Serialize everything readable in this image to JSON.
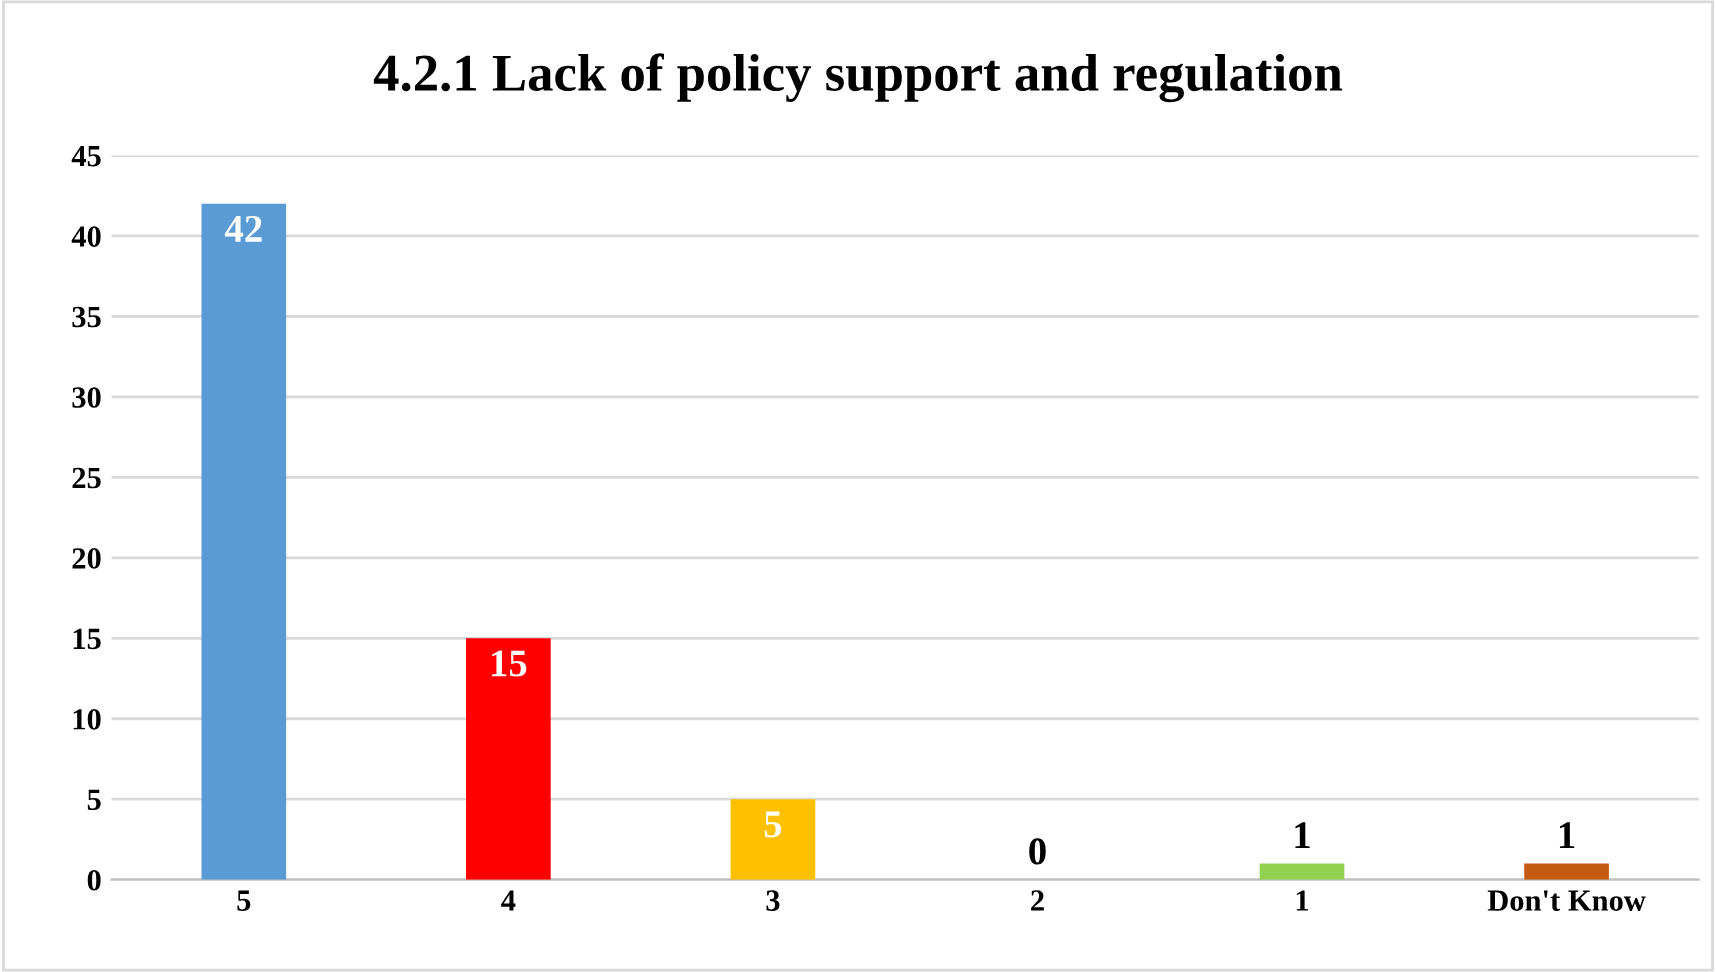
{
  "chart_data": {
    "type": "bar",
    "title": "4.2.1 Lack of policy support and regulation",
    "categories": [
      "5",
      "4",
      "3",
      "2",
      "1",
      "Don't Know"
    ],
    "values": [
      42,
      15,
      5,
      0,
      1,
      1
    ],
    "colors": [
      "#5b9bd5",
      "#ff0000",
      "#ffc000",
      "#a5a5a5",
      "#92d050",
      "#c55a11"
    ],
    "ylim": [
      0,
      45
    ],
    "yticks": [
      0,
      5,
      10,
      15,
      20,
      25,
      30,
      35,
      40,
      45
    ],
    "grid": "y",
    "data_labels": true
  }
}
